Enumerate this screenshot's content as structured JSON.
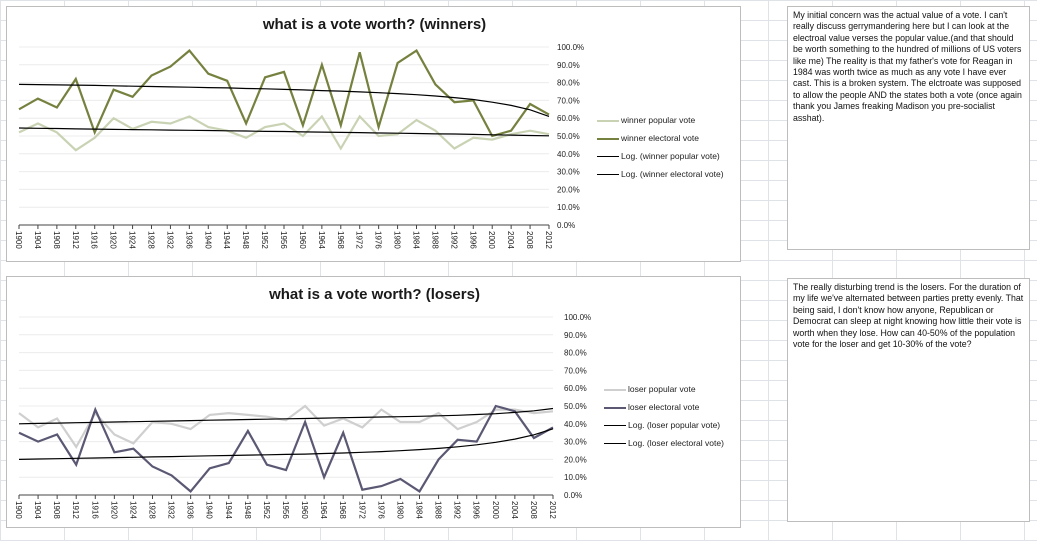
{
  "chart_data": [
    {
      "type": "line",
      "title": "what is a vote worth? (winners)",
      "categories": [
        "1900",
        "1904",
        "1908",
        "1912",
        "1916",
        "1920",
        "1924",
        "1928",
        "1932",
        "1936",
        "1940",
        "1944",
        "1948",
        "1952",
        "1956",
        "1960",
        "1964",
        "1968",
        "1972",
        "1976",
        "1980",
        "1984",
        "1988",
        "1992",
        "1996",
        "2000",
        "2004",
        "2008",
        "2012"
      ],
      "y_tick_labels": [
        "0.0%",
        "10.0%",
        "20.0%",
        "30.0%",
        "40.0%",
        "50.0%",
        "60.0%",
        "70.0%",
        "80.0%",
        "90.0%",
        "100.0%"
      ],
      "ylim": [
        0,
        100
      ],
      "series": [
        {
          "name": "winner popular vote",
          "color": "#c9d3b4",
          "values": [
            52,
            57,
            52,
            42,
            49,
            60,
            54,
            58,
            57,
            61,
            55,
            53,
            49,
            55,
            57,
            50,
            61,
            43,
            61,
            50,
            51,
            59,
            53,
            43,
            49,
            48,
            51,
            53,
            51
          ]
        },
        {
          "name": "winner electoral vote",
          "color": "#75813f",
          "values": [
            65,
            71,
            66,
            82,
            52,
            76,
            72,
            84,
            89,
            98,
            85,
            81,
            57,
            83,
            86,
            56,
            90,
            56,
            97,
            55,
            91,
            98,
            79,
            69,
            70,
            50,
            53,
            68,
            62
          ]
        },
        {
          "name": "Log. (winner popular vote)",
          "color": "#000000",
          "trendline": true,
          "values": [
            54.5,
            54.3,
            54.2,
            54.0,
            53.9,
            53.7,
            53.6,
            53.5,
            53.3,
            53.2,
            53.1,
            52.9,
            52.8,
            52.6,
            52.5,
            52.3,
            52.2,
            52.0,
            51.9,
            51.7,
            51.6,
            51.4,
            51.2,
            51.1,
            50.9,
            50.7,
            50.5,
            50.3,
            50.1
          ]
        },
        {
          "name": "Log. (winner electoral vote)",
          "color": "#000000",
          "trendline": true,
          "values": [
            79.0,
            78.9,
            78.7,
            78.6,
            78.4,
            78.2,
            78.0,
            77.8,
            77.6,
            77.4,
            77.2,
            77.0,
            76.7,
            76.5,
            76.2,
            75.9,
            75.5,
            75.2,
            74.8,
            74.3,
            73.8,
            73.2,
            72.5,
            71.6,
            70.5,
            69.0,
            67.2,
            64.7,
            61.0
          ]
        }
      ]
    },
    {
      "type": "line",
      "title": "what is a vote worth? (losers)",
      "categories": [
        "1900",
        "1904",
        "1908",
        "1912",
        "1916",
        "1920",
        "1924",
        "1928",
        "1932",
        "1936",
        "1940",
        "1944",
        "1948",
        "1952",
        "1956",
        "1960",
        "1964",
        "1968",
        "1972",
        "1976",
        "1980",
        "1984",
        "1988",
        "1992",
        "1996",
        "2000",
        "2004",
        "2008",
        "2012"
      ],
      "y_tick_labels": [
        "0.0%",
        "10.0%",
        "20.0%",
        "30.0%",
        "40.0%",
        "50.0%",
        "60.0%",
        "70.0%",
        "80.0%",
        "90.0%",
        "100.0%"
      ],
      "ylim": [
        0,
        100
      ],
      "series": [
        {
          "name": "loser popular vote",
          "color": "#cfcfcf",
          "values": [
            46,
            38,
            43,
            27,
            46,
            34,
            29,
            41,
            40,
            37,
            45,
            46,
            45,
            44,
            42,
            50,
            39,
            43,
            38,
            48,
            41,
            41,
            46,
            37,
            41,
            48,
            48,
            46,
            47
          ]
        },
        {
          "name": "loser electoral vote",
          "color": "#5a5873",
          "values": [
            35,
            30,
            34,
            17,
            48,
            24,
            26,
            16,
            11,
            2,
            15,
            18,
            36,
            17,
            14,
            41,
            10,
            35,
            3,
            5,
            9,
            2,
            20,
            31,
            30,
            50,
            47,
            32,
            38
          ]
        },
        {
          "name": "Log. (loser popular vote)",
          "color": "#000000",
          "trendline": true,
          "values": [
            40.0,
            40.2,
            40.4,
            40.6,
            40.8,
            41.0,
            41.2,
            41.4,
            41.6,
            41.8,
            42.0,
            42.2,
            42.4,
            42.6,
            42.8,
            43.0,
            43.2,
            43.4,
            43.6,
            43.8,
            44.0,
            44.2,
            44.5,
            44.8,
            45.2,
            45.7,
            46.4,
            47.3,
            48.6
          ]
        },
        {
          "name": "Log. (loser electoral vote)",
          "color": "#000000",
          "trendline": true,
          "values": [
            20.0,
            20.2,
            20.4,
            20.6,
            20.8,
            21.0,
            21.2,
            21.4,
            21.6,
            21.8,
            22.0,
            22.2,
            22.4,
            22.6,
            22.8,
            23.0,
            23.3,
            23.6,
            24.0,
            24.4,
            24.9,
            25.5,
            26.2,
            27.1,
            28.2,
            29.6,
            31.4,
            33.8,
            37.2
          ]
        }
      ]
    }
  ],
  "notes": {
    "top": "My initial concern was the actual value of a vote. I can't really discuss gerrymandering here but I can look at the electroal value verses the popular value.(and that should be worth something to the hundred of millions of US voters like me) The reality is that my father's vote for Reagan in 1984 was worth twice as much as any vote I have ever cast. This is a broken system. The elctroate was supposed to allow the people AND the states both a vote (once again thank you James freaking Madison you pre-socialist asshat).",
    "bottom": "The really disturbing trend is the losers. For the duration of my life we've alternated between parties pretty evenly.  That being said, I don't know how anyone, Republican or Democrat can sleep at night knowing how little their vote is worth when they lose. How can 40-50% of the population vote for the loser and get 10-30% of the vote?"
  }
}
